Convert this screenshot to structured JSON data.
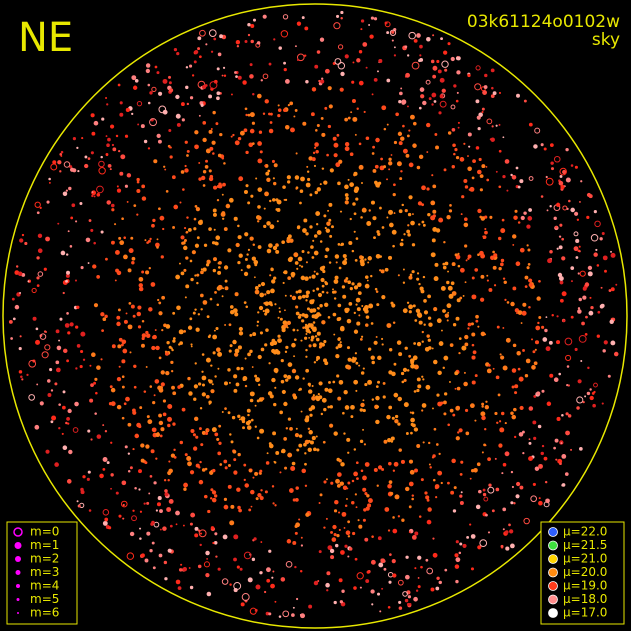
{
  "header": {
    "direction": "NE",
    "frame_id": "03k61124o0102w",
    "mode": "sky"
  },
  "magnitude_legend": {
    "color": "#ff00ff",
    "items": [
      "m=0",
      "m=1",
      "m=2",
      "m=3",
      "m=4",
      "m=5",
      "m=6"
    ]
  },
  "brightness_legend": {
    "items": [
      {
        "label": "μ=22.0",
        "color": "#2f5fff"
      },
      {
        "label": "μ=21.5",
        "color": "#3ee03e"
      },
      {
        "label": "μ=21.0",
        "color": "#ffd400"
      },
      {
        "label": "μ=20.0",
        "color": "#ff8a10"
      },
      {
        "label": "μ=19.0",
        "color": "#ff3c1c"
      },
      {
        "label": "μ=18.0",
        "color": "#ff8c8c"
      },
      {
        "label": "μ=17.0",
        "color": "#ffffff"
      }
    ]
  }
}
